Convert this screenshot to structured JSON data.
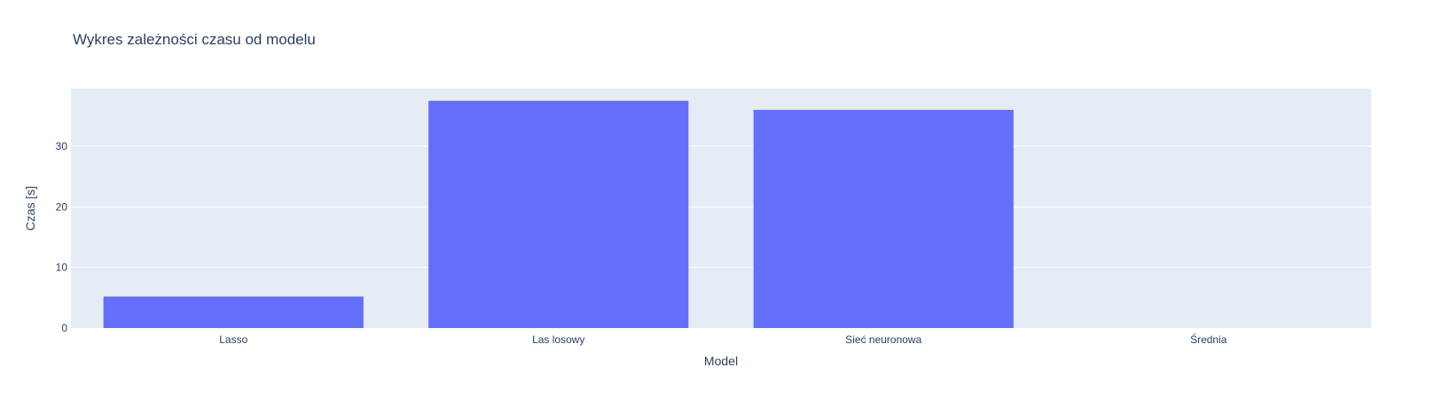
{
  "chart_data": {
    "type": "bar",
    "title": "Wykres zależności czasu od modelu",
    "xlabel": "Model",
    "ylabel": "Czas [s]",
    "categories": [
      "Lasso",
      "Las losowy",
      "Sieć neuronowa",
      "Średnia"
    ],
    "values": [
      5.2,
      37.5,
      36.0,
      0
    ],
    "ylim": [
      0,
      39.5
    ],
    "yticks": [
      0,
      10,
      20,
      30
    ],
    "grid": true,
    "legend": "none",
    "colors": {
      "bar": "#636efa",
      "plot_background": "#e5ecf6",
      "grid": "#ffffff",
      "text": "#2a3f5f"
    }
  }
}
